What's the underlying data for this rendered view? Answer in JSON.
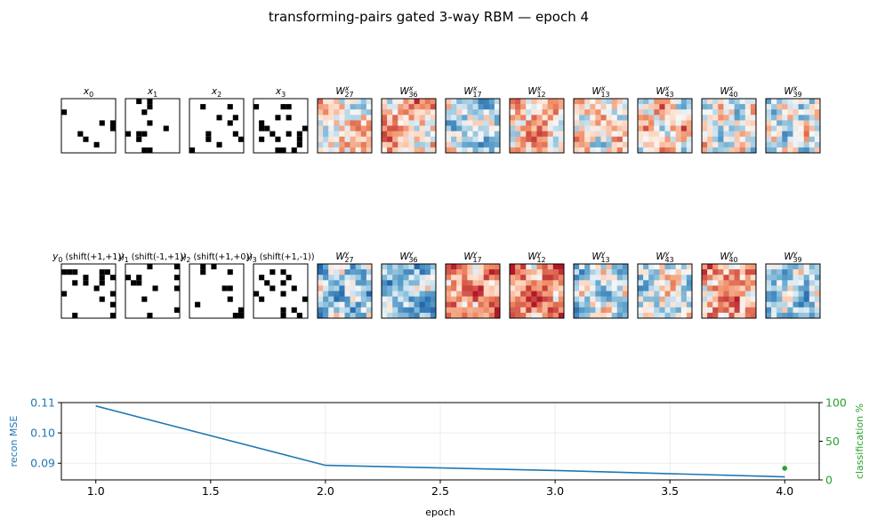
{
  "figure": {
    "title": "transforming-pairs gated 3-way RBM — epoch 4"
  },
  "patch_panels": {
    "row1_labels": [
      "x0",
      "x1",
      "x2",
      "x3"
    ],
    "row1_label_base": "x",
    "row1_label_subs": [
      "0",
      "1",
      "2",
      "3"
    ],
    "row2_label_base": "y",
    "row2_label_subs": [
      "0",
      "1",
      "2",
      "3"
    ],
    "row2_label_suffixes": [
      " (shift(+1,+1))",
      " (shift(-1,+1))",
      " (shift(+1,+0))",
      " (shift(+1,-1))"
    ],
    "filter_top_sup": "x",
    "filter_bottom_sup": "y",
    "filter_base": "W",
    "filter_indices": [
      "27",
      "36",
      "17",
      "12",
      "13",
      "43",
      "40",
      "39"
    ]
  },
  "colors": {
    "mse_line": "#1f77b4",
    "classification": "#2ca02c",
    "grid": "#e6e6e6"
  },
  "chart_data": {
    "type": "line",
    "title": "",
    "xlabel": "epoch",
    "ylabel": "recon MSE",
    "y2label": "classification %",
    "x": [
      1.0,
      2.0,
      3.0,
      4.0
    ],
    "series": [
      {
        "name": "recon MSE",
        "axis": "left",
        "values": [
          0.1089,
          0.0893,
          0.0876,
          0.0855
        ]
      },
      {
        "name": "classification %",
        "axis": "right",
        "points": [
          [
            4.0,
            15
          ]
        ]
      }
    ],
    "xlim": [
      0.85,
      4.15
    ],
    "ylim": [
      0.0845,
      0.11
    ],
    "y2lim": [
      0,
      100
    ],
    "xticks": [
      "1.0",
      "1.5",
      "2.0",
      "2.5",
      "3.0",
      "3.5",
      "4.0"
    ],
    "yticks": [
      "0.09",
      "0.10",
      "0.11"
    ],
    "y2ticks": [
      "0",
      "50",
      "100"
    ],
    "grid": true
  }
}
